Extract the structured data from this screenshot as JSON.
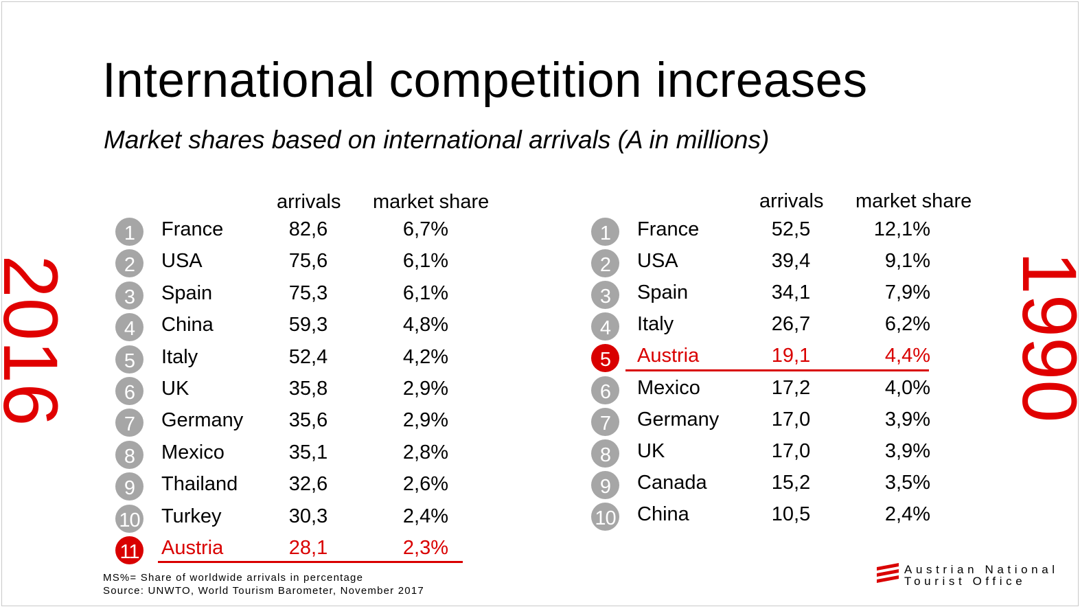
{
  "title": "International competition increases",
  "subtitle": "Market shares based on international arrivals (A in millions)",
  "years": {
    "left": "2016",
    "right": "1990"
  },
  "headers": {
    "arrivals": "arrivals",
    "market_share": "market share"
  },
  "table_2016": [
    {
      "rank": "1",
      "country": "France",
      "arrivals": "82,6",
      "share": "6,7%"
    },
    {
      "rank": "2",
      "country": "USA",
      "arrivals": "75,6",
      "share": "6,1%"
    },
    {
      "rank": "3",
      "country": "Spain",
      "arrivals": "75,3",
      "share": "6,1%"
    },
    {
      "rank": "4",
      "country": "China",
      "arrivals": "59,3",
      "share": "4,8%"
    },
    {
      "rank": "5",
      "country": "Italy",
      "arrivals": "52,4",
      "share": "4,2%"
    },
    {
      "rank": "6",
      "country": "UK",
      "arrivals": "35,8",
      "share": "2,9%"
    },
    {
      "rank": "7",
      "country": "Germany",
      "arrivals": "35,6",
      "share": "2,9%"
    },
    {
      "rank": "8",
      "country": "Mexico",
      "arrivals": "35,1",
      "share": "2,8%"
    },
    {
      "rank": "9",
      "country": "Thailand",
      "arrivals": "32,6",
      "share": "2,6%"
    },
    {
      "rank": "10",
      "country": "Turkey",
      "arrivals": "30,3",
      "share": "2,4%"
    },
    {
      "rank": "11",
      "country": "Austria",
      "arrivals": "28,1",
      "share": "2,3%"
    }
  ],
  "table_1990": [
    {
      "rank": "1",
      "country": "France",
      "arrivals": "52,5",
      "share": "12,1%"
    },
    {
      "rank": "2",
      "country": "USA",
      "arrivals": "39,4",
      "share": "9,1%"
    },
    {
      "rank": "3",
      "country": "Spain",
      "arrivals": "34,1",
      "share": "7,9%"
    },
    {
      "rank": "4",
      "country": "Italy",
      "arrivals": "26,7",
      "share": "6,2%"
    },
    {
      "rank": "5",
      "country": "Austria",
      "arrivals": "19,1",
      "share": "4,4%"
    },
    {
      "rank": "6",
      "country": "Mexico",
      "arrivals": "17,2",
      "share": "4,0%"
    },
    {
      "rank": "7",
      "country": "Germany",
      "arrivals": "17,0",
      "share": "3,9%"
    },
    {
      "rank": "8",
      "country": "UK",
      "arrivals": "17,0",
      "share": "3,9%"
    },
    {
      "rank": "9",
      "country": "Canada",
      "arrivals": "15,2",
      "share": "3,5%"
    },
    {
      "rank": "10",
      "country": "China",
      "arrivals": "10,5",
      "share": "2,4%"
    }
  ],
  "footnote": {
    "line1": "MS%= Share of worldwide arrivals in percentage",
    "line2": "Source:  UNWTO, World Tourism Barometer, November 2017"
  },
  "logo": {
    "line1": "Austrian National",
    "line2": "Tourist Office",
    "icon": "flag-stripes-icon"
  },
  "colors": {
    "highlight": "#d90000",
    "rank_circle": "#a6a6a6",
    "year": "#e00000"
  }
}
